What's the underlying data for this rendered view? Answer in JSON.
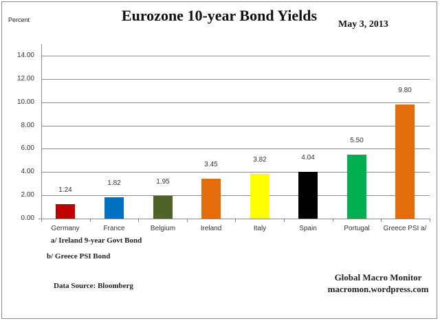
{
  "chart": {
    "title": "Eurozone 10-year Bond Yields",
    "date": "May 3, 2013",
    "ylabel": "Percent",
    "yticks": [
      "0.00",
      "2.00",
      "4.00",
      "6.00",
      "8.00",
      "10.00",
      "12.00",
      "14.00"
    ],
    "footnotes": [
      "a/ Ireland 9-year Govt Bond",
      "b/ Greece PSI Bond"
    ],
    "source": "Data Source:  Bloomberg",
    "brand_name": "Global Macro Monitor",
    "brand_url": "macromon.wordpress.com",
    "bar_colors": [
      "#C00000",
      "#0070C0",
      "#4F6228",
      "#E46C0A",
      "#FFFF00",
      "#000000",
      "#00B050",
      "#E46C0A"
    ]
  },
  "chart_data": {
    "type": "bar",
    "title": "Eurozone 10-year Bond Yields",
    "subtitle": "May 3, 2013",
    "xlabel": "",
    "ylabel": "Percent",
    "ylim": [
      0,
      14
    ],
    "yticks": [
      0,
      2,
      4,
      6,
      8,
      10,
      12,
      14
    ],
    "grid": true,
    "legend": null,
    "categories": [
      "Germany",
      "France",
      "Belgium",
      "Ireland",
      "Italy",
      "Spain",
      "Portugal",
      "Greece PSI a/"
    ],
    "values": [
      1.24,
      1.82,
      1.95,
      3.45,
      3.82,
      4.04,
      5.5,
      9.8
    ],
    "value_labels": [
      "1.24",
      "1.82",
      "1.95",
      "3.45",
      "3.82",
      "4.04",
      "5.50",
      "9.80"
    ],
    "annotations": [
      "a/ Ireland 9-year Govt Bond",
      "b/ Greece PSI Bond",
      "Data Source:  Bloomberg",
      "Global Macro Monitor",
      "macromon.wordpress.com"
    ]
  }
}
